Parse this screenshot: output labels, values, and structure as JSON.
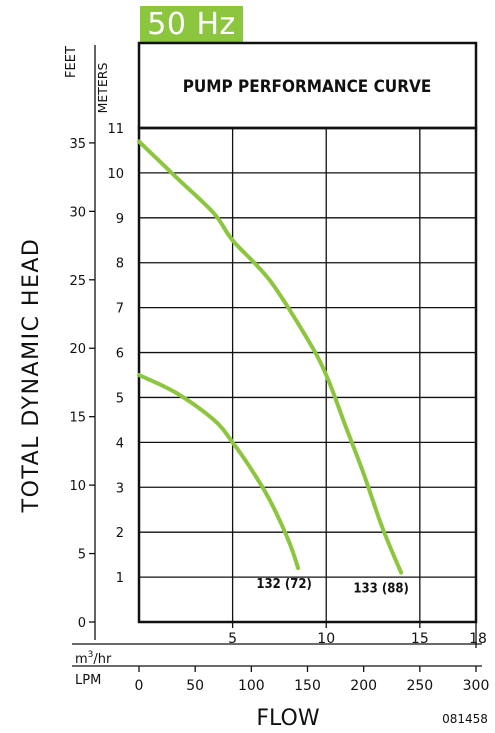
{
  "badge": "50 Hz",
  "chart_data": {
    "type": "line",
    "title": "PUMP PERFORMANCE CURVE",
    "ylabel": "TOTAL DYNAMIC HEAD",
    "xlabel": "FLOW",
    "ylim": [
      0,
      11
    ],
    "xlim": [
      0,
      18
    ],
    "grid": true,
    "axes": {
      "feet": {
        "label": "FEET",
        "ticks": [
          0,
          5,
          10,
          15,
          20,
          25,
          30,
          35
        ]
      },
      "meters": {
        "label": "METERS",
        "ticks": [
          1,
          2,
          3,
          4,
          5,
          6,
          7,
          8,
          9,
          10,
          11
        ]
      },
      "m3hr": {
        "label_base": "m",
        "label_sup": "3",
        "label_tail": "/hr",
        "ticks": [
          5,
          10,
          15,
          18
        ]
      },
      "lpm": {
        "label": "LPM",
        "ticks": [
          0,
          50,
          100,
          150,
          200,
          250,
          300
        ]
      }
    },
    "series": [
      {
        "name": "132 (72)",
        "color": "#8cc63f",
        "x": [
          0,
          2,
          4,
          5,
          6,
          7,
          8,
          8.5
        ],
        "y": [
          5.5,
          5.1,
          4.5,
          4.0,
          3.4,
          2.7,
          1.8,
          1.2
        ]
      },
      {
        "name": "133 (88)",
        "color": "#8cc63f",
        "x": [
          0,
          2,
          4,
          5,
          7,
          9,
          10,
          11,
          12,
          13,
          14
        ],
        "y": [
          10.7,
          9.9,
          9.1,
          8.5,
          7.6,
          6.3,
          5.5,
          4.4,
          3.3,
          2.1,
          1.1
        ]
      }
    ],
    "code": "081458"
  }
}
